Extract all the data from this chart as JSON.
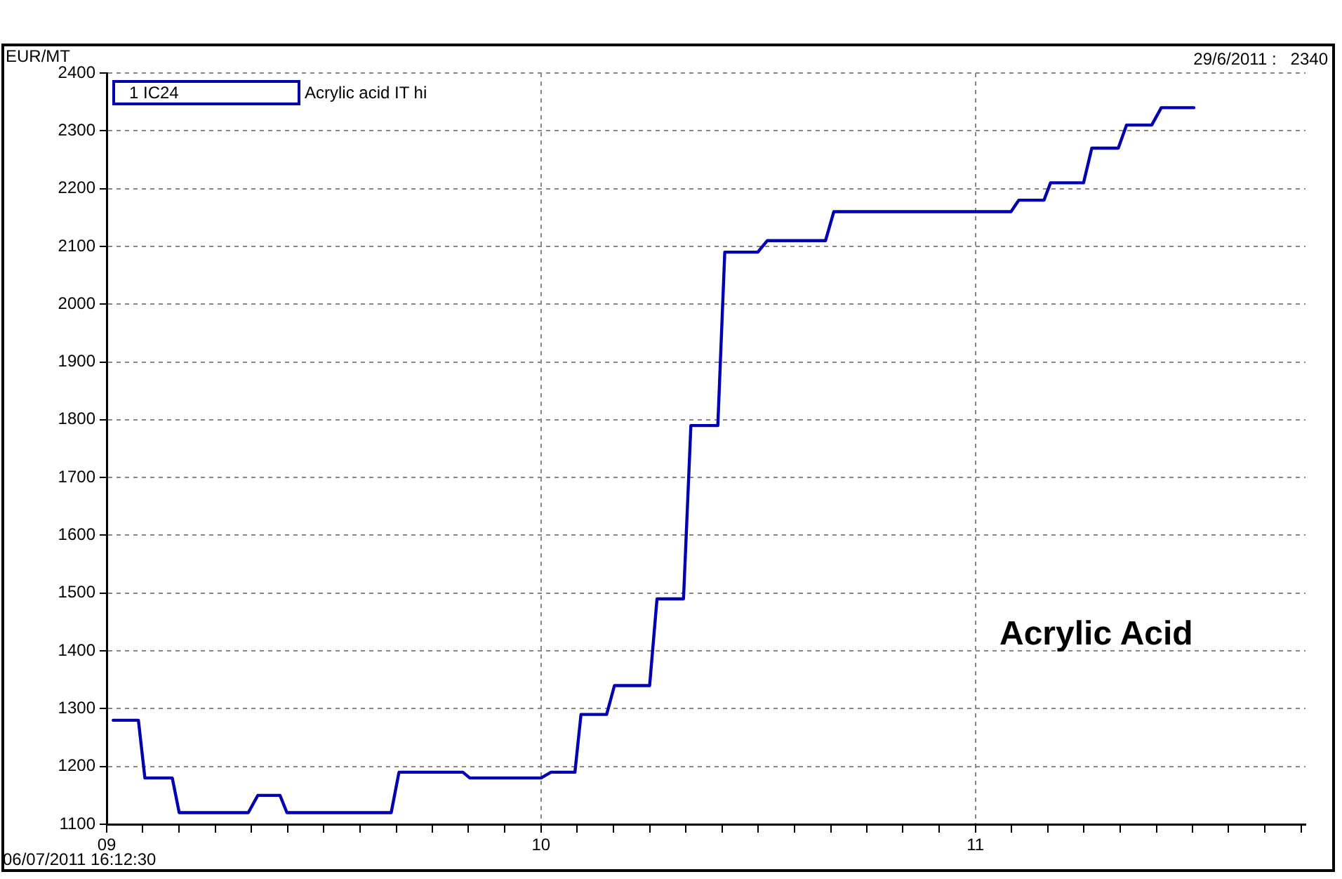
{
  "chart_data": {
    "type": "line",
    "title": "Acrylic Acid",
    "ylabel": "EUR/MT",
    "annotations": [
      "1 IC24",
      "29/6/2011 :   2340",
      "06/07/2011 16:12:30"
    ],
    "x": [
      2009.015,
      2009.073,
      2009.088,
      2009.151,
      2009.167,
      2009.326,
      2009.348,
      2009.399,
      2009.415,
      2009.655,
      2009.673,
      2009.82,
      2009.836,
      2010.0,
      2010.023,
      2010.078,
      2010.092,
      2010.151,
      2010.169,
      2010.25,
      2010.267,
      2010.328,
      2010.345,
      2010.407,
      2010.423,
      2010.499,
      2010.521,
      2010.655,
      2010.674,
      2011.082,
      2011.1,
      2011.158,
      2011.173,
      2011.249,
      2011.268,
      2011.329,
      2011.348,
      2011.406,
      2011.428,
      2011.503
    ],
    "series": [
      {
        "name": "Acrylic acid IT hi",
        "color": "#0000b0",
        "values": [
          1280,
          1280,
          1180,
          1180,
          1120,
          1120,
          1150,
          1150,
          1120,
          1120,
          1190,
          1190,
          1180,
          1180,
          1190,
          1190,
          1290,
          1290,
          1340,
          1340,
          1490,
          1490,
          1790,
          1790,
          2090,
          2090,
          2110,
          2110,
          2160,
          2160,
          2180,
          2180,
          2210,
          2210,
          2270,
          2270,
          2310,
          2310,
          2340,
          2340
        ]
      }
    ],
    "xlim": [
      2009,
      2011.76
    ],
    "xticks": [
      {
        "value": 2009,
        "label": "09"
      },
      {
        "value": 2009.083,
        "label": null
      },
      {
        "value": 2009.167,
        "label": null
      },
      {
        "value": 2009.25,
        "label": null
      },
      {
        "value": 2009.333,
        "label": null
      },
      {
        "value": 2009.417,
        "label": null
      },
      {
        "value": 2009.5,
        "label": null
      },
      {
        "value": 2009.583,
        "label": null
      },
      {
        "value": 2009.667,
        "label": null
      },
      {
        "value": 2009.75,
        "label": null
      },
      {
        "value": 2009.833,
        "label": null
      },
      {
        "value": 2009.917,
        "label": null
      },
      {
        "value": 2010,
        "label": "10"
      },
      {
        "value": 2010.083,
        "label": null
      },
      {
        "value": 2010.167,
        "label": null
      },
      {
        "value": 2010.25,
        "label": null
      },
      {
        "value": 2010.333,
        "label": null
      },
      {
        "value": 2010.417,
        "label": null
      },
      {
        "value": 2010.5,
        "label": null
      },
      {
        "value": 2010.583,
        "label": null
      },
      {
        "value": 2010.667,
        "label": null
      },
      {
        "value": 2010.75,
        "label": null
      },
      {
        "value": 2010.833,
        "label": null
      },
      {
        "value": 2010.917,
        "label": null
      },
      {
        "value": 2011,
        "label": "11"
      },
      {
        "value": 2011.083,
        "label": null
      },
      {
        "value": 2011.167,
        "label": null
      },
      {
        "value": 2011.25,
        "label": null
      },
      {
        "value": 2011.333,
        "label": null
      },
      {
        "value": 2011.417,
        "label": null
      },
      {
        "value": 2011.5,
        "label": null
      },
      {
        "value": 2011.583,
        "label": null
      },
      {
        "value": 2011.667,
        "label": null
      },
      {
        "value": 2011.75,
        "label": null
      }
    ],
    "ylim": [
      1100,
      2400
    ],
    "yticks": [
      1100,
      1200,
      1300,
      1400,
      1500,
      1600,
      1700,
      1800,
      1900,
      2000,
      2100,
      2200,
      2300,
      2400
    ],
    "grid": true,
    "legend": "top left",
    "marker": "none",
    "line_style": "solid"
  }
}
